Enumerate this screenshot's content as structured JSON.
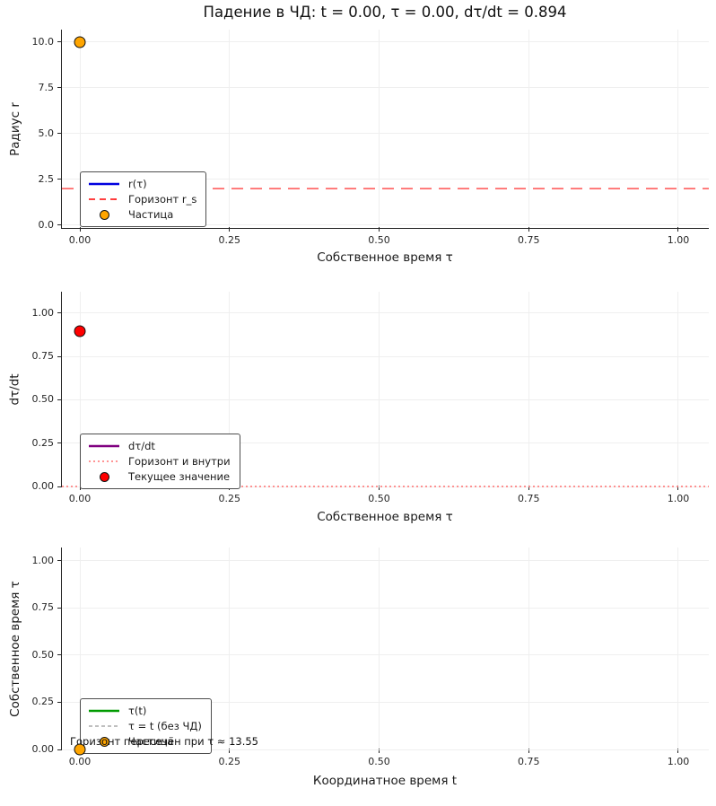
{
  "title": "Падение в ЧД: t = 0.00, τ = 0.00, dτ/dt = 0.894",
  "colors": {
    "trajectory_blue": "#0000e0",
    "horizon_red": "#ff0000",
    "horizon_red_faded": "#ff5252",
    "particle_orange": "#ffa500",
    "dtaudt_purple": "#800080",
    "inside_dotted_red": "#ff7070",
    "current_value_red": "#ff0000",
    "tau_green": "#009b00",
    "no_bh_gray": "#999999",
    "marker_edge": "#111111",
    "grid": "#efefef",
    "spine": "#262626"
  },
  "chart_data": [
    {
      "type": "scatter",
      "title": "",
      "xlabel": "Собственное время τ",
      "ylabel": "Радиус r",
      "xlim": [
        -0.03,
        1.051
      ],
      "ylim": [
        -0.15,
        10.68
      ],
      "grid": true,
      "legend_position": "lower-left",
      "xticks": {
        "values": [
          0,
          0.25,
          0.5,
          0.75,
          1.0
        ],
        "labels": [
          "0.00",
          "0.25",
          "0.50",
          "0.75",
          "1.00"
        ]
      },
      "yticks": {
        "values": [
          0,
          2.5,
          5.0,
          7.5,
          10.0
        ],
        "labels": [
          "0.0",
          "2.5",
          "5.0",
          "7.5",
          "10.0"
        ]
      },
      "series": [
        {
          "name": "r(τ)",
          "color": "#0000e0",
          "x": [
            0.0
          ],
          "y": [
            10.0
          ]
        }
      ],
      "hlines": [
        {
          "label": "Горизонт r_s",
          "y": 2.0,
          "color": "#ff5252",
          "dash": "13,8",
          "width": 1.6
        }
      ],
      "points": [
        {
          "label": "Частица",
          "x": 0.0,
          "y": 10.0,
          "fill": "#ffa500",
          "edge": "#111111",
          "size": 13
        }
      ],
      "legend": {
        "items": [
          {
            "type": "line",
            "color": "#0000e0",
            "dash": "",
            "width": 2.5,
            "label": "r(τ)"
          },
          {
            "type": "line",
            "color": "#ff0000",
            "dash": "7,5",
            "width": 1.6,
            "label": "Горизонт r_s"
          },
          {
            "type": "marker",
            "fill": "#ffa500",
            "edge": "#111111",
            "label": "Частица"
          }
        ]
      },
      "annotation": null
    },
    {
      "type": "scatter",
      "title": "",
      "xlabel": "Собственное время τ",
      "ylabel": "dτ/dt",
      "xlim": [
        -0.03,
        1.051
      ],
      "ylim": [
        0,
        1.124
      ],
      "grid": true,
      "legend_position": "lower-left",
      "xticks": {
        "values": [
          0,
          0.25,
          0.5,
          0.75,
          1.0
        ],
        "labels": [
          "0.00",
          "0.25",
          "0.50",
          "0.75",
          "1.00"
        ]
      },
      "yticks": {
        "values": [
          0,
          0.25,
          0.5,
          0.75,
          1.0
        ],
        "labels": [
          "0.00",
          "0.25",
          "0.50",
          "0.75",
          "1.00"
        ]
      },
      "series": [
        {
          "name": "dτ/dt",
          "color": "#800080",
          "x": [
            0.0
          ],
          "y": [
            0.894
          ]
        }
      ],
      "hlines": [
        {
          "label": "Горизонт и внутри",
          "y": 0.0,
          "color": "#ff7070",
          "dash": "2,3",
          "width": 1.5
        }
      ],
      "points": [
        {
          "label": "Текущее значение",
          "x": 0.0,
          "y": 0.894,
          "fill": "#ff0000",
          "edge": "#111111",
          "size": 13
        }
      ],
      "legend": {
        "items": [
          {
            "type": "line",
            "color": "#800080",
            "dash": "",
            "width": 2.5,
            "label": "dτ/dt"
          },
          {
            "type": "line",
            "color": "#ff7070",
            "dash": "2,3",
            "width": 1.6,
            "label": "Горизонт и внутри"
          },
          {
            "type": "marker",
            "fill": "#ff0000",
            "edge": "#111111",
            "label": "Текущее значение"
          }
        ]
      },
      "annotation": null
    },
    {
      "type": "scatter",
      "title": "",
      "xlabel": "Координатное время t",
      "ylabel": "Собственное время τ",
      "xlim": [
        -0.03,
        1.051
      ],
      "ylim": [
        0,
        1.07
      ],
      "grid": true,
      "legend_position": "lower-left",
      "xticks": {
        "values": [
          0,
          0.25,
          0.5,
          0.75,
          1.0
        ],
        "labels": [
          "0.00",
          "0.25",
          "0.50",
          "0.75",
          "1.00"
        ]
      },
      "yticks": {
        "values": [
          0,
          0.25,
          0.5,
          0.75,
          1.0
        ],
        "labels": [
          "0.00",
          "0.25",
          "0.50",
          "0.75",
          "1.00"
        ]
      },
      "series": [
        {
          "name": "τ(t)",
          "color": "#009b00",
          "x": [
            0.0
          ],
          "y": [
            0.0
          ]
        }
      ],
      "hlines": [],
      "points": [
        {
          "label": "Частица",
          "x": 0.0,
          "y": 0.0,
          "fill": "#ffa500",
          "edge": "#111111",
          "size": 13
        }
      ],
      "legend": {
        "items": [
          {
            "type": "line",
            "color": "#009b00",
            "dash": "",
            "width": 2.5,
            "label": "τ(t)"
          },
          {
            "type": "line",
            "color": "#999999",
            "dash": "4,3",
            "width": 1.2,
            "label": "τ = t (без ЧД)"
          },
          {
            "type": "marker",
            "fill": "#ffa500",
            "edge": "#111111",
            "label": "Частица"
          }
        ]
      },
      "annotation": {
        "text": "Горизонт пересечён при τ ≈ 13.55"
      }
    }
  ]
}
